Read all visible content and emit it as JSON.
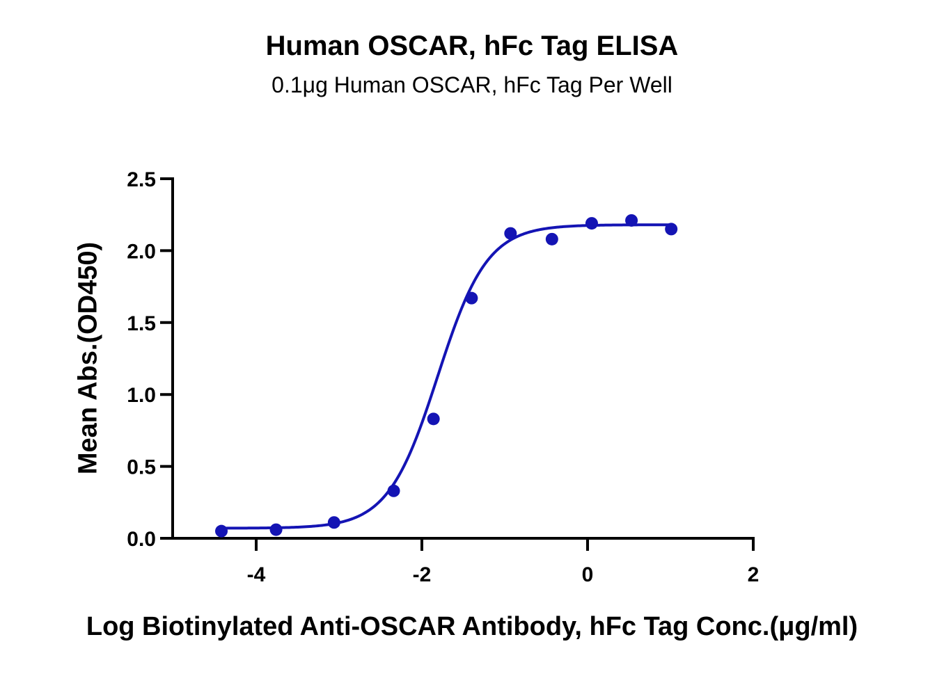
{
  "chart_data": {
    "type": "scatter",
    "title": "Human OSCAR, hFc Tag ELISA",
    "subtitle": "0.1μg Human OSCAR, hFc Tag Per Well",
    "xlabel": "Log Biotinylated Anti-OSCAR Antibody, hFc Tag Conc.(μg/ml)",
    "ylabel": "Mean Abs.(OD450)",
    "xlim": [
      -5,
      2
    ],
    "ylim": [
      0,
      2.5
    ],
    "x_ticks": [
      -4,
      -2,
      0,
      2
    ],
    "x_tick_labels": [
      "-4",
      "-2",
      "0",
      "2"
    ],
    "y_ticks": [
      0,
      0.5,
      1,
      1.5,
      2,
      2.5
    ],
    "y_tick_labels": [
      "0.0",
      "0.5",
      "1.0",
      "1.5",
      "2.0",
      "2.5"
    ],
    "grid": false,
    "legend": "none",
    "series": [
      {
        "x": [
          -4.42,
          -3.76,
          -3.06,
          -2.34,
          -1.86,
          -1.4,
          -0.93,
          -0.43,
          0.05,
          0.53,
          1.01
        ],
        "y": [
          0.05,
          0.06,
          0.11,
          0.33,
          0.83,
          1.67,
          2.12,
          2.08,
          2.19,
          2.21,
          2.15
        ],
        "fit": "four-parameter logistic",
        "fit_params": {
          "bottom": 0.07,
          "top": 2.18,
          "log_ec50": -1.81,
          "hill_slope": 1.45
        }
      }
    ],
    "colors": {
      "series": "#1414b4",
      "axis": "#000000"
    }
  }
}
